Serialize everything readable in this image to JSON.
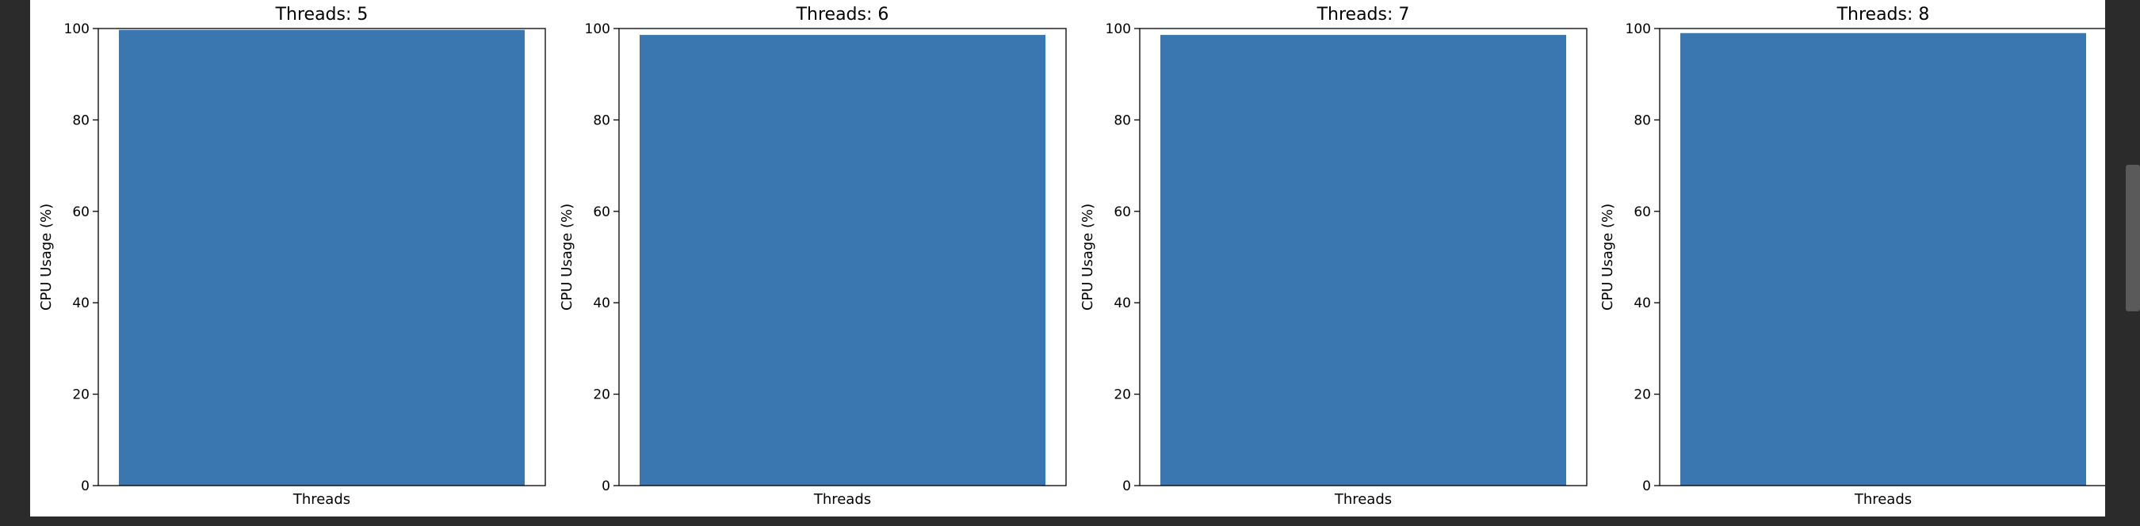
{
  "chart_data": [
    {
      "type": "bar",
      "title": "Threads: 5",
      "categories": [
        ""
      ],
      "values": [
        99.7
      ],
      "xlabel": "Threads",
      "ylabel": "CPU Usage (%)",
      "ylim": [
        0,
        100
      ],
      "yticks": [
        "0",
        "20",
        "40",
        "60",
        "80",
        "100"
      ],
      "grid": false,
      "bar_color": "#3a76b0"
    },
    {
      "type": "bar",
      "title": "Threads: 6",
      "categories": [
        ""
      ],
      "values": [
        98.6
      ],
      "xlabel": "Threads",
      "ylabel": "CPU Usage (%)",
      "ylim": [
        0,
        100
      ],
      "yticks": [
        "0",
        "20",
        "40",
        "60",
        "80",
        "100"
      ],
      "grid": false,
      "bar_color": "#3a76b0"
    },
    {
      "type": "bar",
      "title": "Threads: 7",
      "categories": [
        ""
      ],
      "values": [
        98.6
      ],
      "xlabel": "Threads",
      "ylabel": "CPU Usage (%)",
      "ylim": [
        0,
        100
      ],
      "yticks": [
        "0",
        "20",
        "40",
        "60",
        "80",
        "100"
      ],
      "grid": false,
      "bar_color": "#3a76b0"
    },
    {
      "type": "bar",
      "title": "Threads: 8",
      "categories": [
        ""
      ],
      "values": [
        99.0
      ],
      "xlabel": "Threads",
      "ylabel": "CPU Usage (%)",
      "ylim": [
        0,
        100
      ],
      "yticks": [
        "0",
        "20",
        "40",
        "60",
        "80",
        "100"
      ],
      "grid": false,
      "bar_color": "#3a76b0"
    }
  ],
  "colors": {
    "bar": "#3a76b0",
    "background": "#2b2b2b",
    "panel": "#ffffff"
  }
}
